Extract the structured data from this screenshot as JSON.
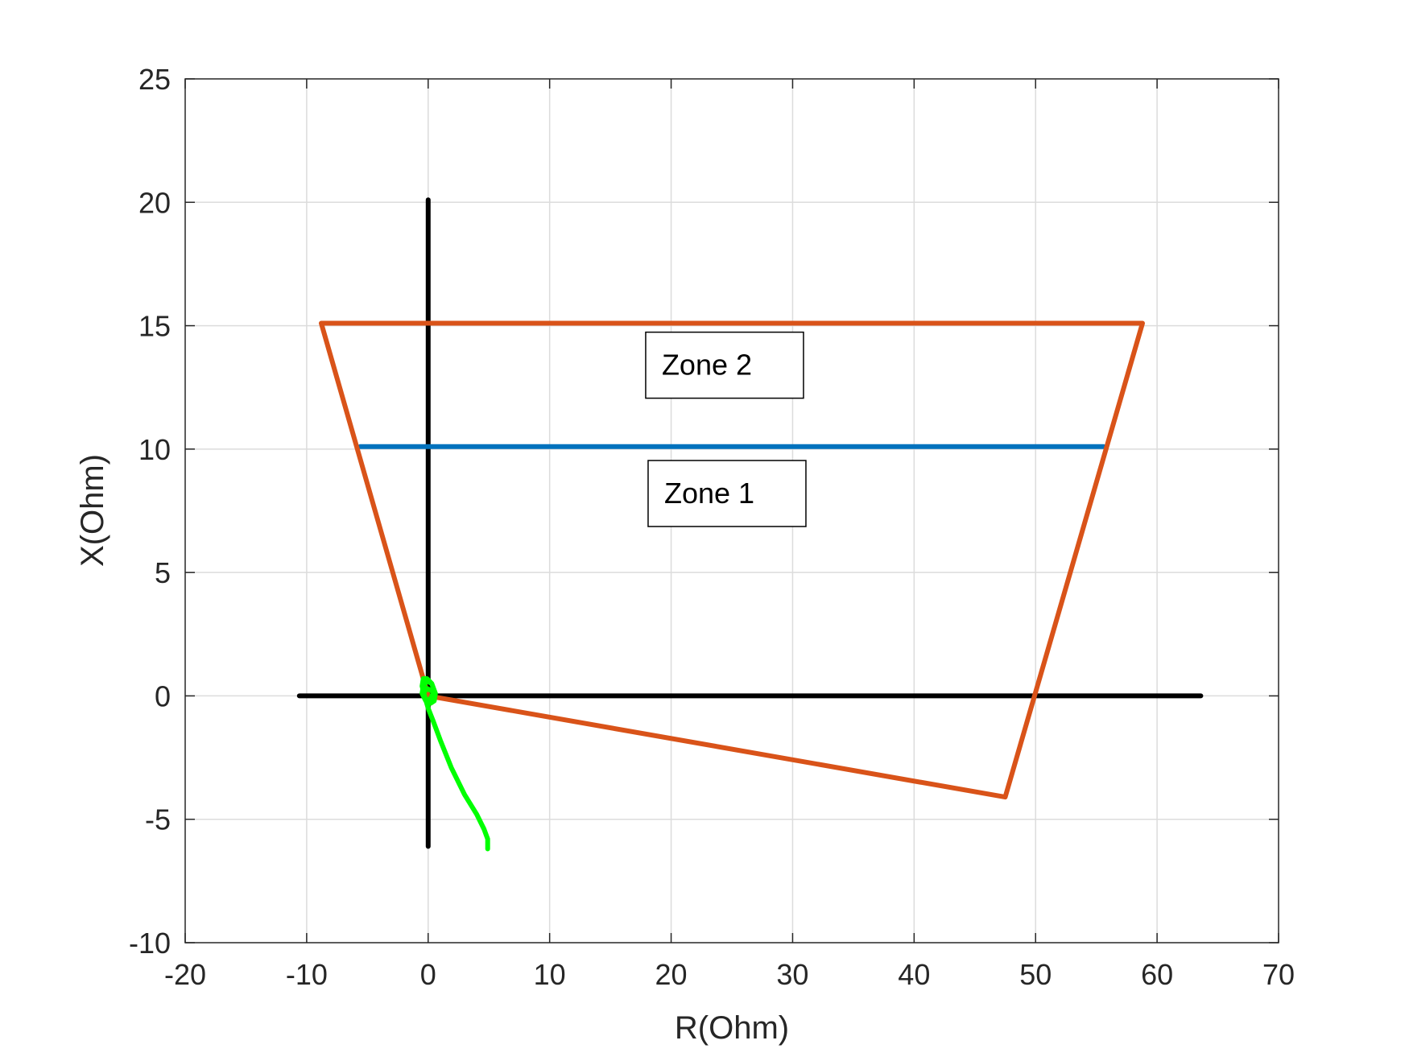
{
  "chart_data": {
    "type": "line",
    "title": "",
    "xlabel": "R(Ohm)",
    "ylabel": "X(Ohm)",
    "xlim": [
      -20,
      70
    ],
    "ylim": [
      -10,
      25
    ],
    "xticks": [
      -20,
      -10,
      0,
      10,
      20,
      30,
      40,
      50,
      60,
      70
    ],
    "yticks": [
      -10,
      -5,
      0,
      5,
      10,
      15,
      20,
      25
    ],
    "grid": true,
    "legend": "none",
    "series": [
      {
        "role": "zone2-boundary",
        "color": "#D95319",
        "x": [
          -8.8,
          58.8,
          47.5,
          0,
          -8.8
        ],
        "y": [
          15.1,
          15.1,
          -4.1,
          0,
          15.1
        ]
      },
      {
        "role": "zone1-reach",
        "color": "#0072BD",
        "x": [
          -5.6,
          55.6
        ],
        "y": [
          10.1,
          10.1
        ]
      },
      {
        "role": "r-axis-line",
        "color": "#000000",
        "x": [
          -10.6,
          63.6
        ],
        "y": [
          0,
          0
        ]
      },
      {
        "role": "x-axis-line",
        "color": "#000000",
        "x": [
          0,
          0
        ],
        "y": [
          20.1,
          -6.1
        ]
      },
      {
        "role": "impedance-trajectory",
        "color": "#00FF00",
        "x": [
          4.9,
          4.9,
          4.6,
          4.0,
          3.0,
          1.9,
          1.0,
          0.4,
          0.0,
          -0.3,
          -0.5,
          -0.4,
          -0.1,
          0.3,
          0.6,
          0.5,
          0.2,
          -0.2,
          -0.5,
          -0.4,
          -0.1,
          0.3,
          0.5,
          0.2,
          -0.2,
          -0.4,
          -0.1,
          0.3
        ],
        "y": [
          -6.2,
          -5.8,
          -5.4,
          -4.8,
          -4.0,
          -2.9,
          -1.8,
          -1.0,
          -0.5,
          0.0,
          0.4,
          0.7,
          0.7,
          0.5,
          0.1,
          -0.2,
          -0.3,
          -0.2,
          0.1,
          0.4,
          0.6,
          0.5,
          0.2,
          -0.1,
          -0.2,
          0.1,
          0.3,
          0.2
        ]
      }
    ],
    "annotations": [
      {
        "text": "Zone 2",
        "x": 24.4,
        "y": 13.4
      },
      {
        "text": "Zone 1",
        "x": 24.6,
        "y": 8.2
      }
    ]
  }
}
